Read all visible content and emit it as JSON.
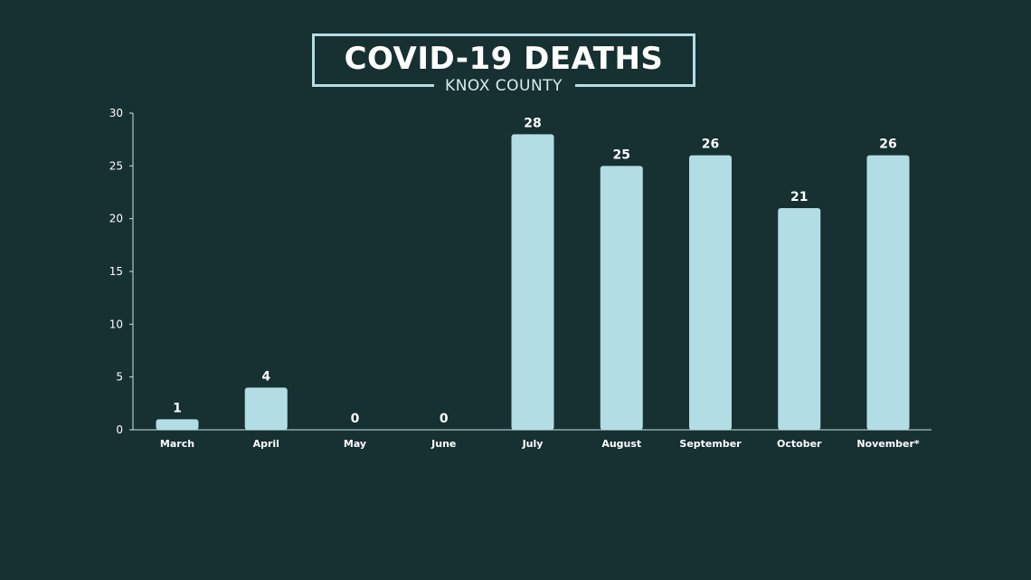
{
  "chart_data": {
    "type": "bar",
    "title": "COVID-19 DEATHS",
    "subtitle": "KNOX COUNTY",
    "categories": [
      "March",
      "April",
      "May",
      "June",
      "July",
      "August",
      "September",
      "October",
      "November*"
    ],
    "values": [
      1,
      4,
      0,
      0,
      28,
      25,
      26,
      21,
      26
    ],
    "value_labels": [
      "1",
      "4",
      "0",
      "0",
      "28",
      "25",
      "26",
      "21",
      "26"
    ],
    "ylim": [
      0,
      30
    ],
    "yticks": [
      0,
      5,
      10,
      15,
      20,
      25,
      30
    ],
    "ytick_labels": [
      "0",
      "5",
      "10",
      "15",
      "20",
      "25",
      "30"
    ],
    "grid": false,
    "legend": "none",
    "colors": {
      "background": "#173032",
      "bar": "#b3dde4",
      "text": "#ffffff",
      "axis": "#c9e6ea"
    }
  }
}
